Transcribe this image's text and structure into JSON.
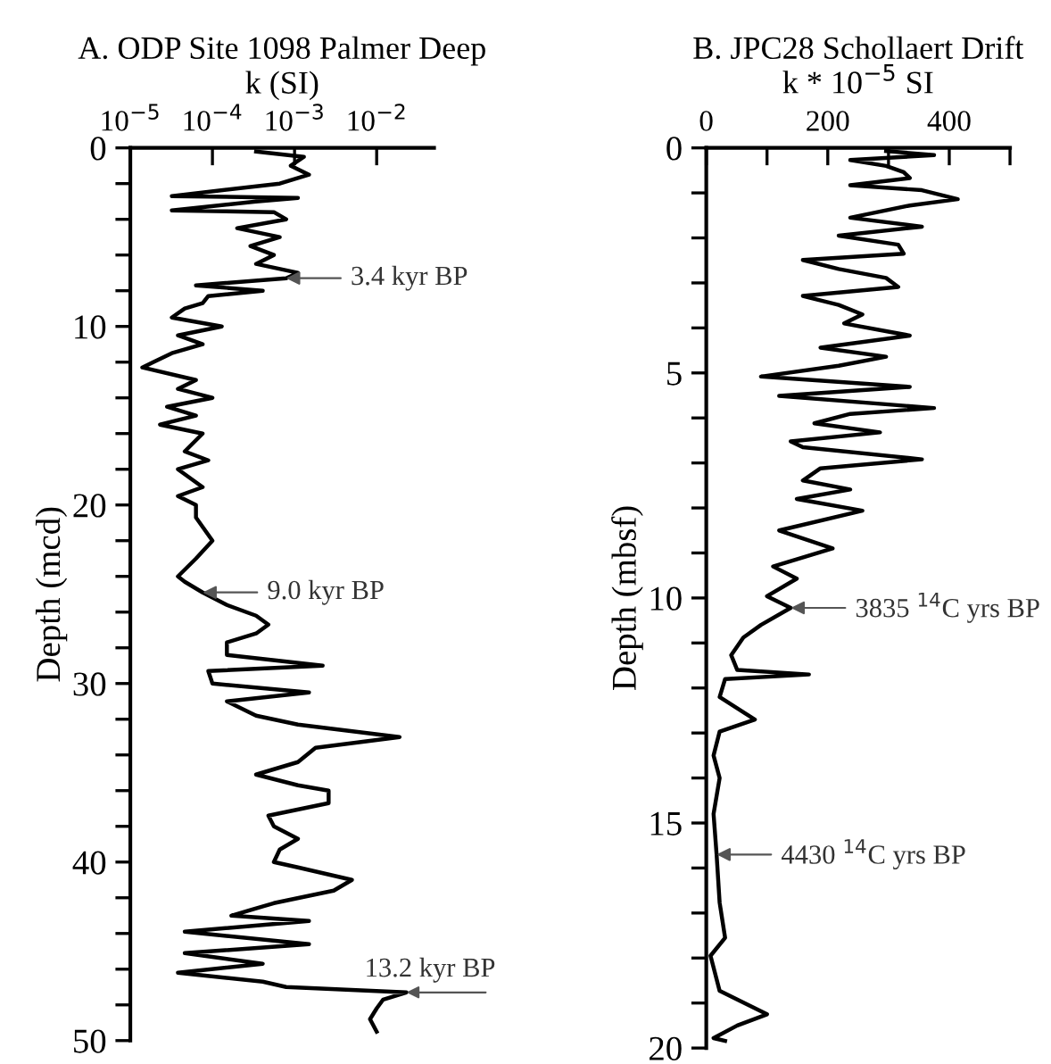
{
  "chart_data": [
    {
      "type": "line",
      "title": "A. ODP Site 1098 Palmer Deep",
      "xlabel": "k (SI)",
      "ylabel": "Depth (mcd)",
      "log": "x",
      "grid": false,
      "legend": false,
      "marker": "none",
      "line_style": "solid",
      "xlim": [
        1e-05,
        0.05
      ],
      "xticks": [
        {
          "value": 1e-05,
          "label": "10$^{−5}$"
        },
        {
          "value": 0.0001,
          "label": "10$^{−4}$"
        },
        {
          "value": 0.001,
          "label": "10$^{−3}$"
        },
        {
          "value": 0.01,
          "label": "10$^{−2}$"
        }
      ],
      "ylim": [
        50,
        0
      ],
      "yticks": [
        0,
        {
          "value": 2,
          "label": null
        },
        {
          "value": 4,
          "label": null
        },
        {
          "value": 6,
          "label": null
        },
        {
          "value": 8,
          "label": null
        },
        10,
        {
          "value": 12,
          "label": null
        },
        {
          "value": 14,
          "label": null
        },
        {
          "value": 16,
          "label": null
        },
        {
          "value": 18,
          "label": null
        },
        20,
        {
          "value": 22,
          "label": null
        },
        {
          "value": 24,
          "label": null
        },
        {
          "value": 26,
          "label": null
        },
        {
          "value": 28,
          "label": null
        },
        30,
        {
          "value": 32,
          "label": null
        },
        {
          "value": 34,
          "label": null
        },
        {
          "value": 36,
          "label": null
        },
        {
          "value": 38,
          "label": null
        },
        40,
        {
          "value": 42,
          "label": null
        },
        {
          "value": 44,
          "label": null
        },
        {
          "value": 46,
          "label": null
        },
        {
          "value": 48,
          "label": null
        },
        50
      ],
      "series": [
        {
          "color": "#000000",
          "x": [
            0.00034,
            0.0013,
            0.0009,
            0.0015,
            0.00066,
            3.2e-05,
            0.0011,
            0.00034,
            3.2e-05,
            0.00056,
            0.00079,
            0.0002,
            0.00066,
            0.00029,
            0.00056,
            0.00034,
            0.0011,
            0.00079,
            6.3e-05,
            0.00041,
            8.9e-05,
            7.6e-05,
            4.6e-05,
            3.2e-05,
            0.00013,
            3.8e-05,
            7.6e-05,
            3.2e-05,
            1.9e-05,
            1.4e-05,
            6.3e-05,
            3.8e-05,
            0.0001,
            2.8e-05,
            6.3e-05,
            2.3e-05,
            7.6e-05,
            4.6e-05,
            8.9e-05,
            3.8e-05,
            7.6e-05,
            3.8e-05,
            6.3e-05,
            6.3e-05,
            0.0001,
            6.3e-05,
            3.8e-05,
            4.6e-05,
            7.6e-05,
            0.00015,
            0.00034,
            0.00048,
            0.00034,
            0.00015,
            0.00015,
            0.0022,
            8.9e-05,
            0.0001,
            0.0015,
            0.00015,
            0.00034,
            0.0011,
            0.019,
            0.0018,
            0.0011,
            0.00034,
            0.0011,
            0.0026,
            0.0026,
            0.00048,
            0.00056,
            0.0011,
            0.00066,
            0.00056,
            0.0011,
            0.005,
            0.003,
            0.00056,
            0.00017,
            0.0015,
            4.6e-05,
            0.0015,
            4.6e-05,
            0.00041,
            3.8e-05,
            0.00041,
            0.00079,
            0.023,
            0.012,
            0.01,
            0.0083,
            0.01
          ],
          "values": [
            0.2,
            0.5,
            1,
            1.5,
            2,
            2.7,
            2.8,
            3,
            3.5,
            3.6,
            4,
            4.5,
            5,
            5.5,
            6,
            6.5,
            7,
            7.3,
            7.7,
            8,
            8.3,
            8.7,
            9,
            9.5,
            10,
            10.5,
            11,
            11.5,
            12,
            12.3,
            13,
            13.5,
            14,
            14.5,
            15,
            15.5,
            16,
            17,
            17.5,
            18,
            19,
            19.5,
            20,
            20.7,
            22,
            23,
            24,
            24.3,
            24.9,
            25.6,
            26.2,
            26.7,
            27.2,
            27.7,
            28.4,
            29,
            29.3,
            30,
            30.5,
            31,
            31.8,
            32.3,
            33,
            33.6,
            34.4,
            35.1,
            35.7,
            36,
            36.7,
            37.4,
            38,
            38.7,
            39.3,
            40,
            40.3,
            41,
            41.6,
            42.3,
            43,
            43.3,
            43.9,
            44.6,
            45.1,
            45.7,
            46.2,
            46.7,
            47,
            47.3,
            47.7,
            48.2,
            48.8,
            49.5
          ]
        }
      ],
      "annotations": [
        {
          "text": "3.4 kyr BP",
          "x": 0.00079,
          "y": 7.3
        },
        {
          "text": "9.0 kyr BP",
          "x": 7.6e-05,
          "y": 24.9
        },
        {
          "text": "13.2 kyr BP",
          "x": 0.023,
          "y": 47.3
        }
      ]
    },
    {
      "type": "line",
      "title": "B. JPC28 Schollaert Drift",
      "xlabel": "k * 10$^{−5}$ SI",
      "ylabel": "Depth (mbsf)",
      "grid": false,
      "legend": false,
      "marker": "none",
      "line_style": "solid",
      "xlim": [
        0,
        500
      ],
      "xticks": [
        0,
        {
          "value": 100,
          "label": null
        },
        200,
        {
          "value": 300,
          "label": null
        },
        400,
        {
          "value": 500,
          "label": null
        }
      ],
      "ylim": [
        20,
        0
      ],
      "yticks": [
        0,
        {
          "value": 1,
          "label": null
        },
        {
          "value": 2,
          "label": null
        },
        {
          "value": 3,
          "label": null
        },
        {
          "value": 4,
          "label": null
        },
        5,
        {
          "value": 6,
          "label": null
        },
        {
          "value": 7,
          "label": null
        },
        {
          "value": 8,
          "label": null
        },
        {
          "value": 9,
          "label": null
        },
        10,
        {
          "value": 11,
          "label": null
        },
        {
          "value": 12,
          "label": null
        },
        {
          "value": 13,
          "label": null
        },
        {
          "value": 14,
          "label": null
        },
        15,
        {
          "value": 16,
          "label": null
        },
        {
          "value": 17,
          "label": null
        },
        {
          "value": 18,
          "label": null
        },
        {
          "value": 19,
          "label": null
        },
        20
      ],
      "series": [
        {
          "color": "#000000",
          "x": [
            296,
            375,
            237,
            296,
            325,
            335,
            237,
            355,
            414,
            335,
            237,
            355,
            218,
            316,
            325,
            159,
            218,
            296,
            316,
            159,
            218,
            257,
            227,
            335,
            188,
            296,
            218,
            90,
            335,
            120,
            375,
            237,
            178,
            286,
            139,
            159,
            355,
            188,
            159,
            237,
            149,
            257,
            120,
            208,
            110,
            149,
            100,
            139,
            90,
            61,
            41,
            51,
            169,
            31,
            22,
            80,
            22,
            12,
            22,
            12,
            17,
            22,
            31,
            7,
            22,
            100,
            51,
            12,
            31
          ],
          "values": [
            0.07,
            0.16,
            0.27,
            0.4,
            0.54,
            0.67,
            0.83,
            0.94,
            1.14,
            1.28,
            1.55,
            1.75,
            1.95,
            2.15,
            2.35,
            2.49,
            2.69,
            2.89,
            3.09,
            3.29,
            3.49,
            3.7,
            3.9,
            4.17,
            4.44,
            4.64,
            4.84,
            5.08,
            5.31,
            5.51,
            5.78,
            5.91,
            6.12,
            6.32,
            6.52,
            6.65,
            6.92,
            7.12,
            7.39,
            7.59,
            7.8,
            8.06,
            8.5,
            8.9,
            9.3,
            9.57,
            9.96,
            10.22,
            10.6,
            10.88,
            11.27,
            11.6,
            11.7,
            11.8,
            12.2,
            12.7,
            12.97,
            13.5,
            14.0,
            14.8,
            15.7,
            16.77,
            17.55,
            17.95,
            18.73,
            19.25,
            19.5,
            19.78,
            19.84
          ]
        }
      ],
      "annotations": [
        {
          "text": "3835 $^{14}$C yrs BP",
          "x": 139,
          "y": 10.22
        },
        {
          "text": "4430 $^{14}$C yrs BP",
          "x": 17,
          "y": 15.7
        }
      ]
    }
  ]
}
